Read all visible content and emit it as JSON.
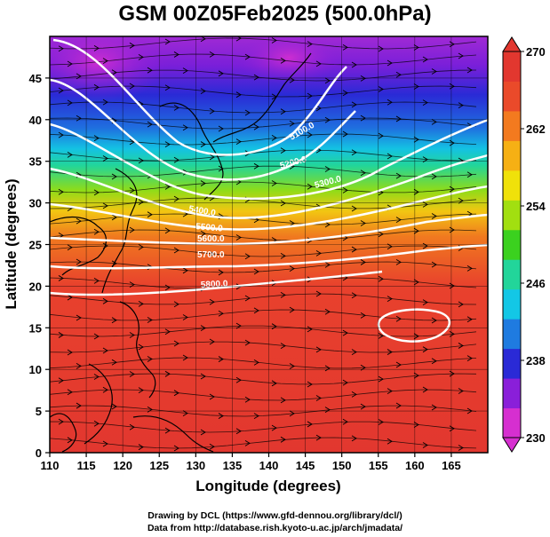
{
  "title": "GSM 00Z05Feb2025 (500.0hPa)",
  "x_axis": {
    "label": "Longitude (degrees)",
    "ticks": [
      110,
      115,
      120,
      125,
      130,
      135,
      140,
      145,
      150,
      155,
      160,
      165
    ],
    "range": [
      110,
      170
    ]
  },
  "y_axis": {
    "label": "Latitude  (degrees)",
    "ticks": [
      0,
      5,
      10,
      15,
      20,
      25,
      30,
      35,
      40,
      45
    ],
    "range": [
      0,
      50
    ]
  },
  "colorbar": {
    "ticks": [
      230,
      238,
      246,
      254,
      262,
      270
    ],
    "range": [
      230,
      270
    ],
    "colors": [
      "#d62fd0",
      "#8a1fd9",
      "#2a2ad6",
      "#1f7be0",
      "#13c7e6",
      "#22d59a",
      "#3bd11f",
      "#a2df10",
      "#f0e10a",
      "#f6b014",
      "#f37a1f",
      "#ea4a2a",
      "#e2372f"
    ]
  },
  "contour_labels": [
    "5100.0",
    "5200.0",
    "5300.0",
    "5400.0",
    "5500.0",
    "5600.0",
    "5700.0",
    "5800.0"
  ],
  "credits": {
    "line1": "Drawing by DCL (https://www.gfd-dennou.org/library/dcl/)",
    "line2": "Data from http://database.rish.kyoto-u.ac.jp/arch/jmadata/"
  },
  "chart_data": {
    "type": "heatmap",
    "title": "GSM 00Z05Feb2025 (500.0hPa)",
    "xlabel": "Longitude (degrees)",
    "ylabel": "Latitude  (degrees)",
    "xlim": [
      110,
      170
    ],
    "ylim": [
      0,
      50
    ],
    "field": "temperature (K), shaded",
    "colorbar_range": [
      230,
      270
    ],
    "contours": "geopotential height (m), white lines",
    "contour_levels": [
      {
        "value": 5100.0,
        "label_lon": 144,
        "label_lat": 41.5
      },
      {
        "value": 5200.0,
        "label_lon": 143,
        "label_lat": 37.5
      },
      {
        "value": 5300.0,
        "label_lon": 149,
        "label_lat": 35.5
      },
      {
        "value": 5400.0,
        "label_lon": 127,
        "label_lat": 32.0
      },
      {
        "value": 5500.0,
        "label_lon": 128,
        "label_lat": 30.0
      },
      {
        "value": 5600.0,
        "label_lon": 128,
        "label_lat": 28.5
      },
      {
        "value": 5700.0,
        "label_lon": 128,
        "label_lat": 26.5
      },
      {
        "value": 5800.0,
        "label_lon": 129,
        "label_lat": 22.0
      }
    ],
    "features": [
      "wind streamlines",
      "closed 5800 m contour near 160E 16N"
    ]
  }
}
